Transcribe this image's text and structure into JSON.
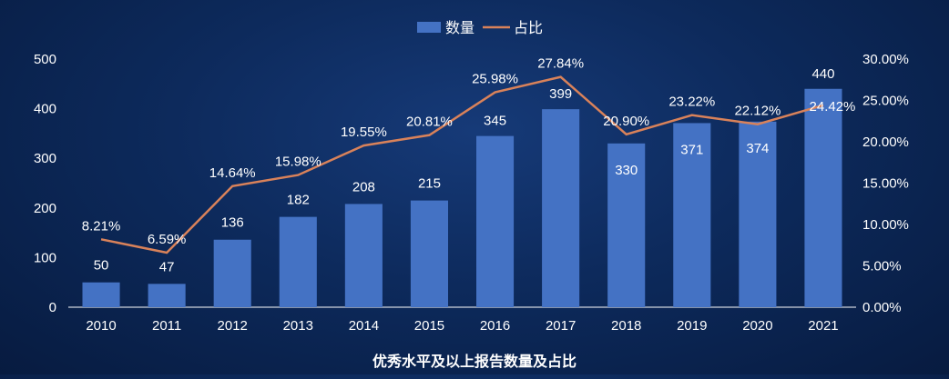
{
  "legend": {
    "bar_label": "数量",
    "line_label": "占比"
  },
  "caption": "优秀水平及以上报告数量及占比",
  "colors": {
    "bar": "#4472c4",
    "line": "#d9825a",
    "axis": "#ffffff"
  },
  "chart_data": {
    "type": "bar",
    "title": "优秀水平及以上报告数量及占比",
    "categories": [
      "2010",
      "2011",
      "2012",
      "2013",
      "2014",
      "2015",
      "2016",
      "2017",
      "2018",
      "2019",
      "2020",
      "2021"
    ],
    "series": [
      {
        "name": "数量",
        "type": "bar",
        "axis": "left",
        "values": [
          50,
          47,
          136,
          182,
          208,
          215,
          345,
          399,
          330,
          371,
          374,
          440
        ],
        "labels": [
          "50",
          "47",
          "136",
          "182",
          "208",
          "215",
          "345",
          "399",
          "330",
          "371",
          "374",
          "440"
        ]
      },
      {
        "name": "占比",
        "type": "line",
        "axis": "right",
        "values": [
          8.21,
          6.59,
          14.64,
          15.98,
          19.55,
          20.81,
          25.98,
          27.84,
          20.9,
          23.22,
          22.12,
          24.42
        ],
        "labels": [
          "8.21%",
          "6.59%",
          "14.64%",
          "15.98%",
          "19.55%",
          "20.81%",
          "25.98%",
          "27.84%",
          "20.90%",
          "23.22%",
          "22.12%",
          "24.42%"
        ]
      }
    ],
    "y_left": {
      "range": [
        0,
        500
      ],
      "ticks": [
        "0",
        "100",
        "200",
        "300",
        "400",
        "500"
      ]
    },
    "y_right": {
      "range": [
        0,
        30
      ],
      "ticks": [
        "0.00%",
        "5.00%",
        "10.00%",
        "15.00%",
        "20.00%",
        "25.00%",
        "30.00%"
      ]
    },
    "grid": false,
    "legend_position": "top-center"
  }
}
